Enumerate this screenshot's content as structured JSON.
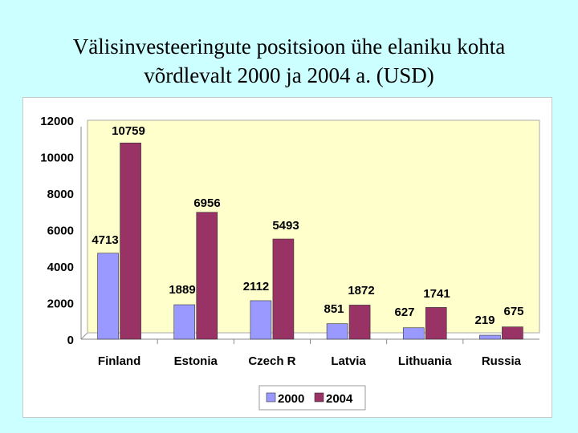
{
  "title_line1": "Välisinvesteeringute positsioon ühe elaniku kohta",
  "title_line2": "võrdlevalt 2000 ja 2004 a. (USD)",
  "chart_data": {
    "type": "bar",
    "categories": [
      "Finland",
      "Estonia",
      "Czech R",
      "Latvia",
      "Lithuania",
      "Russia"
    ],
    "series": [
      {
        "name": "2000",
        "values": [
          4713,
          1889,
          2112,
          851,
          627,
          219
        ],
        "color": "#9999ff"
      },
      {
        "name": "2004",
        "values": [
          10759,
          6956,
          5493,
          1872,
          1741,
          675
        ],
        "color": "#993366"
      }
    ],
    "y_ticks": [
      "0",
      "2000",
      "4000",
      "6000",
      "8000",
      "10000",
      "12000"
    ],
    "ylim": [
      0,
      12000
    ],
    "grid": false,
    "legend_position": "bottom",
    "plot_background": "#ffffcc"
  }
}
